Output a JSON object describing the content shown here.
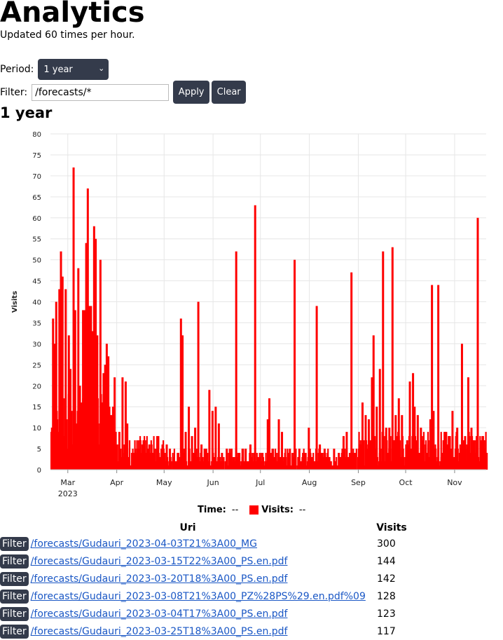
{
  "page": {
    "title": "Analytics",
    "updated": "Updated 60 times per hour.",
    "period_label": "Period:",
    "period_value": "1 year",
    "filter_label": "Filter:",
    "filter_value": "/forecasts/*",
    "apply_label": "Apply",
    "clear_label": "Clear",
    "chart_heading": "1 year"
  },
  "legend": {
    "time_label": "Time:",
    "time_value": "--",
    "visits_label": "Visits:",
    "visits_value": "--"
  },
  "colors": {
    "bars": "#ff0000",
    "button_bg": "#343b4b",
    "link": "#1a57c5"
  },
  "chart_data": {
    "type": "bar",
    "ylabel": "Visits",
    "ylim": [
      0,
      80
    ],
    "yticks": [
      0,
      5,
      10,
      15,
      20,
      25,
      30,
      35,
      40,
      45,
      50,
      55,
      60,
      65,
      70,
      75,
      80
    ],
    "xticks": [
      "Mar",
      "Apr",
      "May",
      "Jun",
      "Jul",
      "Aug",
      "Sep",
      "Oct",
      "Nov"
    ],
    "xtick_year": "2023",
    "xlim": [
      "2023-02-18",
      "2023-11-21"
    ],
    "grid": true,
    "series": [
      {
        "name": "Visits",
        "peaks": [
          [
            "2023-02-19",
            36
          ],
          [
            "2023-02-20",
            30
          ],
          [
            "2023-02-21",
            40
          ],
          [
            "2023-02-23",
            43
          ],
          [
            "2023-02-24",
            52
          ],
          [
            "2023-02-25",
            46
          ],
          [
            "2023-02-27",
            43
          ],
          [
            "2023-03-01",
            32
          ],
          [
            "2023-03-02",
            24
          ],
          [
            "2023-03-04",
            72
          ],
          [
            "2023-03-05",
            38
          ],
          [
            "2023-03-07",
            48
          ],
          [
            "2023-03-08",
            20
          ],
          [
            "2023-03-09",
            16
          ],
          [
            "2023-03-10",
            38
          ],
          [
            "2023-03-11",
            38
          ],
          [
            "2023-03-12",
            54
          ],
          [
            "2023-03-13",
            67
          ],
          [
            "2023-03-14",
            39
          ],
          [
            "2023-03-15",
            39
          ],
          [
            "2023-03-16",
            33
          ],
          [
            "2023-03-17",
            58
          ],
          [
            "2023-03-18",
            55
          ],
          [
            "2023-03-19",
            32
          ],
          [
            "2023-03-21",
            50
          ],
          [
            "2023-03-22",
            16
          ],
          [
            "2023-03-23",
            23
          ],
          [
            "2023-03-24",
            25
          ],
          [
            "2023-03-25",
            30
          ],
          [
            "2023-03-26",
            27
          ],
          [
            "2023-03-27",
            13
          ],
          [
            "2023-03-28",
            13
          ],
          [
            "2023-03-30",
            22
          ],
          [
            "2023-04-02",
            9
          ],
          [
            "2023-04-04",
            22
          ],
          [
            "2023-04-06",
            21
          ],
          [
            "2023-04-07",
            11
          ],
          [
            "2023-04-10",
            4
          ],
          [
            "2023-04-12",
            5
          ],
          [
            "2023-04-14",
            5
          ],
          [
            "2023-04-17",
            3
          ],
          [
            "2023-04-20",
            4
          ],
          [
            "2023-04-23",
            4
          ],
          [
            "2023-04-26",
            8
          ],
          [
            "2023-04-29",
            5
          ],
          [
            "2023-05-02",
            6
          ],
          [
            "2023-05-04",
            5
          ],
          [
            "2023-05-06",
            3
          ],
          [
            "2023-05-09",
            4
          ],
          [
            "2023-05-11",
            36
          ],
          [
            "2023-05-12",
            32
          ],
          [
            "2023-05-14",
            9
          ],
          [
            "2023-05-16",
            15
          ],
          [
            "2023-05-18",
            8
          ],
          [
            "2023-05-20",
            10
          ],
          [
            "2023-05-22",
            40
          ],
          [
            "2023-05-24",
            6
          ],
          [
            "2023-05-26",
            5
          ],
          [
            "2023-05-29",
            19
          ],
          [
            "2023-05-31",
            14
          ],
          [
            "2023-06-02",
            15
          ],
          [
            "2023-06-04",
            11
          ],
          [
            "2023-06-06",
            4
          ],
          [
            "2023-06-09",
            5
          ],
          [
            "2023-06-12",
            5
          ],
          [
            "2023-06-15",
            52
          ],
          [
            "2023-06-17",
            4
          ],
          [
            "2023-06-19",
            5
          ],
          [
            "2023-06-21",
            5
          ],
          [
            "2023-06-24",
            6
          ],
          [
            "2023-06-27",
            63
          ],
          [
            "2023-06-29",
            3
          ],
          [
            "2023-07-02",
            3
          ],
          [
            "2023-07-05",
            12
          ],
          [
            "2023-07-06",
            17
          ],
          [
            "2023-07-09",
            3
          ],
          [
            "2023-07-12",
            12
          ],
          [
            "2023-07-14",
            9
          ],
          [
            "2023-07-16",
            4
          ],
          [
            "2023-07-19",
            5
          ],
          [
            "2023-07-22",
            50
          ],
          [
            "2023-07-25",
            5
          ],
          [
            "2023-07-28",
            4
          ],
          [
            "2023-07-31",
            10
          ],
          [
            "2023-08-02",
            3
          ],
          [
            "2023-08-05",
            39
          ],
          [
            "2023-08-07",
            6
          ],
          [
            "2023-08-10",
            5
          ],
          [
            "2023-08-13",
            3
          ],
          [
            "2023-08-16",
            5
          ],
          [
            "2023-08-19",
            4
          ],
          [
            "2023-08-22",
            8
          ],
          [
            "2023-08-24",
            9
          ],
          [
            "2023-08-27",
            47
          ],
          [
            "2023-08-29",
            3
          ],
          [
            "2023-09-01",
            6
          ],
          [
            "2023-09-03",
            16
          ],
          [
            "2023-09-05",
            13
          ],
          [
            "2023-09-07",
            12
          ],
          [
            "2023-09-09",
            22
          ],
          [
            "2023-09-10",
            32
          ],
          [
            "2023-09-12",
            15
          ],
          [
            "2023-09-14",
            24
          ],
          [
            "2023-09-16",
            52
          ],
          [
            "2023-09-18",
            10
          ],
          [
            "2023-09-20",
            10
          ],
          [
            "2023-09-22",
            53
          ],
          [
            "2023-09-24",
            13
          ],
          [
            "2023-09-26",
            17
          ],
          [
            "2023-09-28",
            13
          ],
          [
            "2023-10-01",
            5
          ],
          [
            "2023-10-03",
            21
          ],
          [
            "2023-10-05",
            23
          ],
          [
            "2023-10-06",
            15
          ],
          [
            "2023-10-08",
            13
          ],
          [
            "2023-10-10",
            10
          ],
          [
            "2023-10-13",
            6
          ],
          [
            "2023-10-16",
            12
          ],
          [
            "2023-10-17",
            44
          ],
          [
            "2023-10-18",
            14
          ],
          [
            "2023-10-21",
            44
          ],
          [
            "2023-10-23",
            3
          ],
          [
            "2023-10-26",
            9
          ],
          [
            "2023-10-28",
            8
          ],
          [
            "2023-10-30",
            14
          ],
          [
            "2023-11-02",
            10
          ],
          [
            "2023-11-05",
            30
          ],
          [
            "2023-11-07",
            8
          ],
          [
            "2023-11-09",
            22
          ],
          [
            "2023-11-11",
            10
          ],
          [
            "2023-11-13",
            7
          ],
          [
            "2023-11-15",
            60
          ]
        ]
      }
    ]
  },
  "table": {
    "filter_label": "Filter",
    "headers": [
      "Uri",
      "Visits"
    ],
    "rows": [
      {
        "uri": "/forecasts/Gudauri_2023-04-03T21%3A00_MG",
        "visits": "300"
      },
      {
        "uri": "/forecasts/Gudauri_2023-03-15T22%3A00_PS.en.pdf",
        "visits": "144"
      },
      {
        "uri": "/forecasts/Gudauri_2023-03-20T18%3A00_PS.en.pdf",
        "visits": "142"
      },
      {
        "uri": "/forecasts/Gudauri_2023-03-08T21%3A00_PZ%28PS%29.en.pdf%09",
        "visits": "128"
      },
      {
        "uri": "/forecasts/Gudauri_2023-03-04T17%3A00_PS.en.pdf",
        "visits": "123"
      },
      {
        "uri": "/forecasts/Gudauri_2023-03-25T18%3A00_PS.en.pdf",
        "visits": "117"
      }
    ]
  }
}
